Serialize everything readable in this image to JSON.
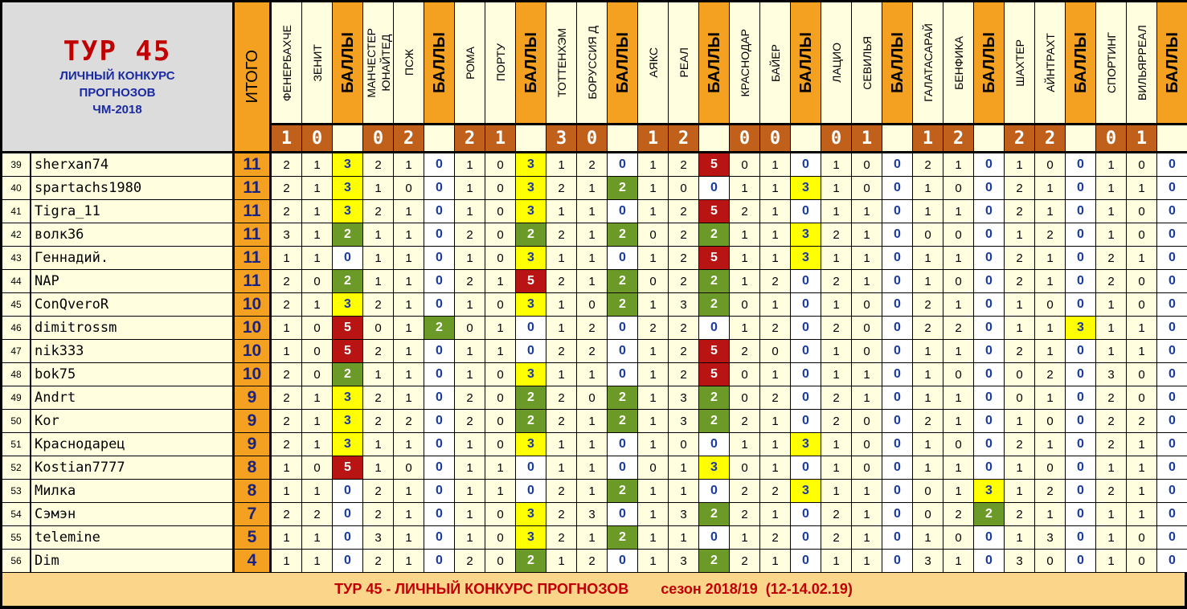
{
  "header": {
    "title": "ТУР 45",
    "subtitle_lines": [
      "ЛИЧНЫЙ КОНКУРС",
      "ПРОГНОЗОВ",
      "ЧМ-2018"
    ],
    "itogo_label": "ИТОГО",
    "balls_label": "БАЛЛЫ"
  },
  "matches": [
    {
      "home": "ФЕНЕРБАХЧЕ",
      "away": "ЗЕНИТ",
      "home_score": "1",
      "away_score": "0"
    },
    {
      "home": "МАНЧЕСТЕР\nЮНАЙТЕД",
      "away": "ПСЖ",
      "home_score": "0",
      "away_score": "2"
    },
    {
      "home": "РОМА",
      "away": "ПОРТУ",
      "home_score": "2",
      "away_score": "1"
    },
    {
      "home": "ТОТТЕНХЭМ",
      "away": "БОРУССИЯ Д",
      "home_score": "3",
      "away_score": "0"
    },
    {
      "home": "АЯКС",
      "away": "РЕАЛ",
      "home_score": "1",
      "away_score": "2"
    },
    {
      "home": "КРАСНОДАР",
      "away": "БАЙЕР",
      "home_score": "0",
      "away_score": "0"
    },
    {
      "home": "ЛАЦИО",
      "away": "СЕВИЛЬЯ",
      "home_score": "0",
      "away_score": "1"
    },
    {
      "home": "ГАЛАТАСАРАЙ",
      "away": "БЕНФИКА",
      "home_score": "1",
      "away_score": "2"
    },
    {
      "home": "ШАХТЕР",
      "away": "АЙНТРАХТ",
      "home_score": "2",
      "away_score": "2"
    },
    {
      "home": "СПОРТИНГ",
      "away": "ВИЛЬЯРРЕАЛ",
      "home_score": "0",
      "away_score": "1"
    }
  ],
  "rows": [
    {
      "rank": "39",
      "name": "sherxan74",
      "total": "11",
      "cells": [
        [
          "2",
          "1",
          "3"
        ],
        [
          "2",
          "1",
          "0"
        ],
        [
          "1",
          "0",
          "3"
        ],
        [
          "1",
          "2",
          "0"
        ],
        [
          "1",
          "2",
          "5"
        ],
        [
          "0",
          "1",
          "0"
        ],
        [
          "1",
          "0",
          "0"
        ],
        [
          "2",
          "1",
          "0"
        ],
        [
          "1",
          "0",
          "0"
        ],
        [
          "1",
          "0",
          "0"
        ]
      ]
    },
    {
      "rank": "40",
      "name": "spartachs1980",
      "total": "11",
      "cells": [
        [
          "2",
          "1",
          "3"
        ],
        [
          "1",
          "0",
          "0"
        ],
        [
          "1",
          "0",
          "3"
        ],
        [
          "2",
          "1",
          "2"
        ],
        [
          "1",
          "0",
          "0"
        ],
        [
          "1",
          "1",
          "3"
        ],
        [
          "1",
          "0",
          "0"
        ],
        [
          "1",
          "0",
          "0"
        ],
        [
          "2",
          "1",
          "0"
        ],
        [
          "1",
          "1",
          "0"
        ]
      ]
    },
    {
      "rank": "41",
      "name": "Tigra_11",
      "total": "11",
      "cells": [
        [
          "2",
          "1",
          "3"
        ],
        [
          "2",
          "1",
          "0"
        ],
        [
          "1",
          "0",
          "3"
        ],
        [
          "1",
          "1",
          "0"
        ],
        [
          "1",
          "2",
          "5"
        ],
        [
          "2",
          "1",
          "0"
        ],
        [
          "1",
          "1",
          "0"
        ],
        [
          "1",
          "1",
          "0"
        ],
        [
          "2",
          "1",
          "0"
        ],
        [
          "1",
          "0",
          "0"
        ]
      ]
    },
    {
      "rank": "42",
      "name": "волк36",
      "total": "11",
      "cells": [
        [
          "3",
          "1",
          "2"
        ],
        [
          "1",
          "1",
          "0"
        ],
        [
          "2",
          "0",
          "2"
        ],
        [
          "2",
          "1",
          "2"
        ],
        [
          "0",
          "2",
          "2"
        ],
        [
          "1",
          "1",
          "3"
        ],
        [
          "2",
          "1",
          "0"
        ],
        [
          "0",
          "0",
          "0"
        ],
        [
          "1",
          "2",
          "0"
        ],
        [
          "1",
          "0",
          "0"
        ]
      ]
    },
    {
      "rank": "43",
      "name": "Геннадий.",
      "total": "11",
      "cells": [
        [
          "1",
          "1",
          "0"
        ],
        [
          "1",
          "1",
          "0"
        ],
        [
          "1",
          "0",
          "3"
        ],
        [
          "1",
          "1",
          "0"
        ],
        [
          "1",
          "2",
          "5"
        ],
        [
          "1",
          "1",
          "3"
        ],
        [
          "1",
          "1",
          "0"
        ],
        [
          "1",
          "1",
          "0"
        ],
        [
          "2",
          "1",
          "0"
        ],
        [
          "2",
          "1",
          "0"
        ]
      ]
    },
    {
      "rank": "44",
      "name": "NAP",
      "total": "11",
      "cells": [
        [
          "2",
          "0",
          "2"
        ],
        [
          "1",
          "1",
          "0"
        ],
        [
          "2",
          "1",
          "5"
        ],
        [
          "2",
          "1",
          "2"
        ],
        [
          "0",
          "2",
          "2"
        ],
        [
          "1",
          "2",
          "0"
        ],
        [
          "2",
          "1",
          "0"
        ],
        [
          "1",
          "0",
          "0"
        ],
        [
          "2",
          "1",
          "0"
        ],
        [
          "2",
          "0",
          "0"
        ]
      ]
    },
    {
      "rank": "45",
      "name": "ConQveroR",
      "total": "10",
      "cells": [
        [
          "2",
          "1",
          "3"
        ],
        [
          "2",
          "1",
          "0"
        ],
        [
          "1",
          "0",
          "3"
        ],
        [
          "1",
          "0",
          "2"
        ],
        [
          "1",
          "3",
          "2"
        ],
        [
          "0",
          "1",
          "0"
        ],
        [
          "1",
          "0",
          "0"
        ],
        [
          "2",
          "1",
          "0"
        ],
        [
          "1",
          "0",
          "0"
        ],
        [
          "1",
          "0",
          "0"
        ]
      ]
    },
    {
      "rank": "46",
      "name": "dimitrossm",
      "total": "10",
      "cells": [
        [
          "1",
          "0",
          "5"
        ],
        [
          "0",
          "1",
          "2"
        ],
        [
          "0",
          "1",
          "0"
        ],
        [
          "1",
          "2",
          "0"
        ],
        [
          "2",
          "2",
          "0"
        ],
        [
          "1",
          "2",
          "0"
        ],
        [
          "2",
          "0",
          "0"
        ],
        [
          "2",
          "2",
          "0"
        ],
        [
          "1",
          "1",
          "3"
        ],
        [
          "1",
          "1",
          "0"
        ]
      ]
    },
    {
      "rank": "47",
      "name": "nik333",
      "total": "10",
      "cells": [
        [
          "1",
          "0",
          "5"
        ],
        [
          "2",
          "1",
          "0"
        ],
        [
          "1",
          "1",
          "0"
        ],
        [
          "2",
          "2",
          "0"
        ],
        [
          "1",
          "2",
          "5"
        ],
        [
          "2",
          "0",
          "0"
        ],
        [
          "1",
          "0",
          "0"
        ],
        [
          "1",
          "1",
          "0"
        ],
        [
          "2",
          "1",
          "0"
        ],
        [
          "1",
          "1",
          "0"
        ]
      ]
    },
    {
      "rank": "48",
      "name": "bok75",
      "total": "10",
      "cells": [
        [
          "2",
          "0",
          "2"
        ],
        [
          "1",
          "1",
          "0"
        ],
        [
          "1",
          "0",
          "3"
        ],
        [
          "1",
          "1",
          "0"
        ],
        [
          "1",
          "2",
          "5"
        ],
        [
          "0",
          "1",
          "0"
        ],
        [
          "1",
          "1",
          "0"
        ],
        [
          "1",
          "0",
          "0"
        ],
        [
          "0",
          "2",
          "0"
        ],
        [
          "3",
          "0",
          "0"
        ]
      ]
    },
    {
      "rank": "49",
      "name": "Andrt",
      "total": "9",
      "cells": [
        [
          "2",
          "1",
          "3"
        ],
        [
          "2",
          "1",
          "0"
        ],
        [
          "2",
          "0",
          "2"
        ],
        [
          "2",
          "0",
          "2"
        ],
        [
          "1",
          "3",
          "2"
        ],
        [
          "0",
          "2",
          "0"
        ],
        [
          "2",
          "1",
          "0"
        ],
        [
          "1",
          "1",
          "0"
        ],
        [
          "0",
          "1",
          "0"
        ],
        [
          "2",
          "0",
          "0"
        ]
      ]
    },
    {
      "rank": "50",
      "name": "Kor",
      "total": "9",
      "cells": [
        [
          "2",
          "1",
          "3"
        ],
        [
          "2",
          "2",
          "0"
        ],
        [
          "2",
          "0",
          "2"
        ],
        [
          "2",
          "1",
          "2"
        ],
        [
          "1",
          "3",
          "2"
        ],
        [
          "2",
          "1",
          "0"
        ],
        [
          "2",
          "0",
          "0"
        ],
        [
          "2",
          "1",
          "0"
        ],
        [
          "1",
          "0",
          "0"
        ],
        [
          "2",
          "2",
          "0"
        ]
      ]
    },
    {
      "rank": "51",
      "name": "Краснодарец",
      "total": "9",
      "cells": [
        [
          "2",
          "1",
          "3"
        ],
        [
          "1",
          "1",
          "0"
        ],
        [
          "1",
          "0",
          "3"
        ],
        [
          "1",
          "1",
          "0"
        ],
        [
          "1",
          "0",
          "0"
        ],
        [
          "1",
          "1",
          "3"
        ],
        [
          "1",
          "0",
          "0"
        ],
        [
          "1",
          "0",
          "0"
        ],
        [
          "2",
          "1",
          "0"
        ],
        [
          "2",
          "1",
          "0"
        ]
      ]
    },
    {
      "rank": "52",
      "name": "Kostian7777",
      "total": "8",
      "cells": [
        [
          "1",
          "0",
          "5"
        ],
        [
          "1",
          "0",
          "0"
        ],
        [
          "1",
          "1",
          "0"
        ],
        [
          "1",
          "1",
          "0"
        ],
        [
          "0",
          "1",
          "3"
        ],
        [
          "0",
          "1",
          "0"
        ],
        [
          "1",
          "0",
          "0"
        ],
        [
          "1",
          "1",
          "0"
        ],
        [
          "1",
          "0",
          "0"
        ],
        [
          "1",
          "1",
          "0"
        ]
      ]
    },
    {
      "rank": "53",
      "name": "Милка",
      "total": "8",
      "cells": [
        [
          "1",
          "1",
          "0"
        ],
        [
          "2",
          "1",
          "0"
        ],
        [
          "1",
          "1",
          "0"
        ],
        [
          "2",
          "1",
          "2"
        ],
        [
          "1",
          "1",
          "0"
        ],
        [
          "2",
          "2",
          "3"
        ],
        [
          "1",
          "1",
          "0"
        ],
        [
          "0",
          "1",
          "3"
        ],
        [
          "1",
          "2",
          "0"
        ],
        [
          "2",
          "1",
          "0"
        ]
      ]
    },
    {
      "rank": "54",
      "name": "Сэмэн",
      "total": "7",
      "cells": [
        [
          "2",
          "2",
          "0"
        ],
        [
          "2",
          "1",
          "0"
        ],
        [
          "1",
          "0",
          "3"
        ],
        [
          "2",
          "3",
          "0"
        ],
        [
          "1",
          "3",
          "2"
        ],
        [
          "2",
          "1",
          "0"
        ],
        [
          "2",
          "1",
          "0"
        ],
        [
          "0",
          "2",
          "2"
        ],
        [
          "2",
          "1",
          "0"
        ],
        [
          "1",
          "1",
          "0"
        ]
      ]
    },
    {
      "rank": "55",
      "name": "telemine",
      "total": "5",
      "cells": [
        [
          "1",
          "1",
          "0"
        ],
        [
          "3",
          "1",
          "0"
        ],
        [
          "1",
          "0",
          "3"
        ],
        [
          "2",
          "1",
          "2"
        ],
        [
          "1",
          "1",
          "0"
        ],
        [
          "1",
          "2",
          "0"
        ],
        [
          "2",
          "1",
          "0"
        ],
        [
          "1",
          "0",
          "0"
        ],
        [
          "1",
          "3",
          "0"
        ],
        [
          "1",
          "0",
          "0"
        ]
      ]
    },
    {
      "rank": "56",
      "name": "Dim",
      "total": "4",
      "cells": [
        [
          "1",
          "1",
          "0"
        ],
        [
          "2",
          "1",
          "0"
        ],
        [
          "2",
          "0",
          "2"
        ],
        [
          "1",
          "2",
          "0"
        ],
        [
          "1",
          "3",
          "2"
        ],
        [
          "2",
          "1",
          "0"
        ],
        [
          "1",
          "1",
          "0"
        ],
        [
          "3",
          "1",
          "0"
        ],
        [
          "3",
          "0",
          "0"
        ],
        [
          "1",
          "0",
          "0"
        ]
      ]
    }
  ],
  "footer": {
    "left": "ТУР 45 - ЛИЧНЫЙ КОНКУРС ПРОГНОЗОВ",
    "right": "сезон 2018/19  (12-14.02.19)"
  },
  "colors": {
    "points_0": "#ffffff",
    "points_2": "#6b9a28",
    "points_3": "#ffff00",
    "points_5": "#b81414",
    "accent_orange": "#f4a020",
    "score_brown": "#c0601a"
  }
}
